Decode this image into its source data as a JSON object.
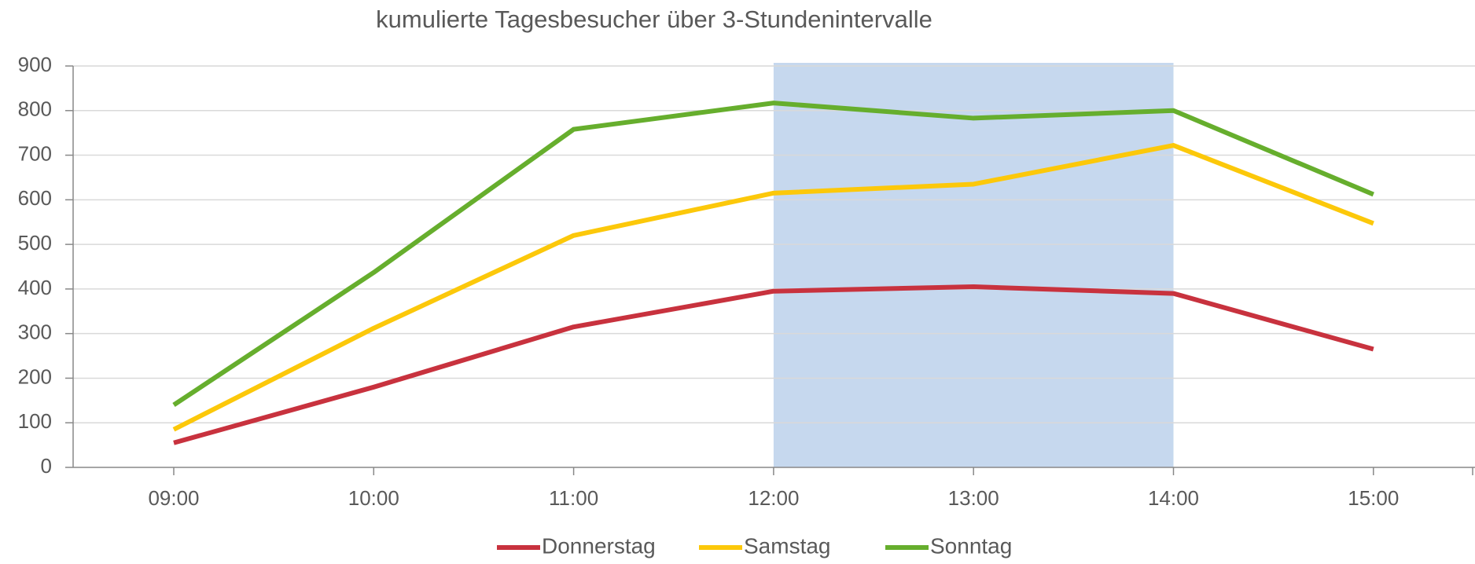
{
  "chart_data": {
    "type": "line",
    "title": "kumulierte Tagesbesucher über 3-Stundenintervalle",
    "categories": [
      "09:00",
      "10:00",
      "11:00",
      "12:00",
      "13:00",
      "14:00",
      "15:00"
    ],
    "series": [
      {
        "name": "Donnerstag",
        "color": "#c8323e",
        "values": [
          55,
          180,
          315,
          395,
          405,
          390,
          265
        ]
      },
      {
        "name": "Samstag",
        "color": "#fcc80a",
        "values": [
          85,
          312,
          520,
          615,
          635,
          722,
          547
        ]
      },
      {
        "name": "Sonntag",
        "color": "#66ae2d",
        "values": [
          140,
          437,
          758,
          817,
          783,
          800,
          612
        ]
      }
    ],
    "ylim": [
      0,
      900
    ],
    "yticks": [
      0,
      100,
      200,
      300,
      400,
      500,
      600,
      700,
      800,
      900
    ],
    "grid": true,
    "legend": "bottom"
  }
}
